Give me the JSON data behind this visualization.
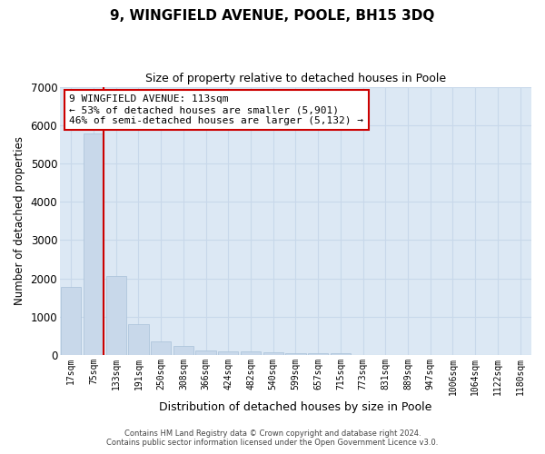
{
  "title": "9, WINGFIELD AVENUE, POOLE, BH15 3DQ",
  "subtitle": "Size of property relative to detached houses in Poole",
  "xlabel": "Distribution of detached houses by size in Poole",
  "ylabel": "Number of detached properties",
  "bar_labels": [
    "17sqm",
    "75sqm",
    "133sqm",
    "191sqm",
    "250sqm",
    "308sqm",
    "366sqm",
    "424sqm",
    "482sqm",
    "540sqm",
    "599sqm",
    "657sqm",
    "715sqm",
    "773sqm",
    "831sqm",
    "889sqm",
    "947sqm",
    "1006sqm",
    "1064sqm",
    "1122sqm",
    "1180sqm"
  ],
  "bar_values": [
    1780,
    5780,
    2075,
    800,
    370,
    230,
    120,
    100,
    95,
    80,
    55,
    50,
    45,
    0,
    0,
    0,
    0,
    0,
    0,
    0,
    0
  ],
  "bar_color": "#c8d8ea",
  "bar_edge_color": "#a8c0d8",
  "property_line_color": "#cc0000",
  "ylim": [
    0,
    7000
  ],
  "yticks": [
    0,
    1000,
    2000,
    3000,
    4000,
    5000,
    6000,
    7000
  ],
  "annotation_title": "9 WINGFIELD AVENUE: 113sqm",
  "annotation_line1": "← 53% of detached houses are smaller (5,901)",
  "annotation_line2": "46% of semi-detached houses are larger (5,132) →",
  "annotation_box_color": "#ffffff",
  "annotation_box_edge": "#cc0000",
  "grid_color": "#c8d8ea",
  "background_color": "#dce8f4",
  "footer1": "Contains HM Land Registry data © Crown copyright and database right 2024.",
  "footer2": "Contains public sector information licensed under the Open Government Licence v3.0."
}
